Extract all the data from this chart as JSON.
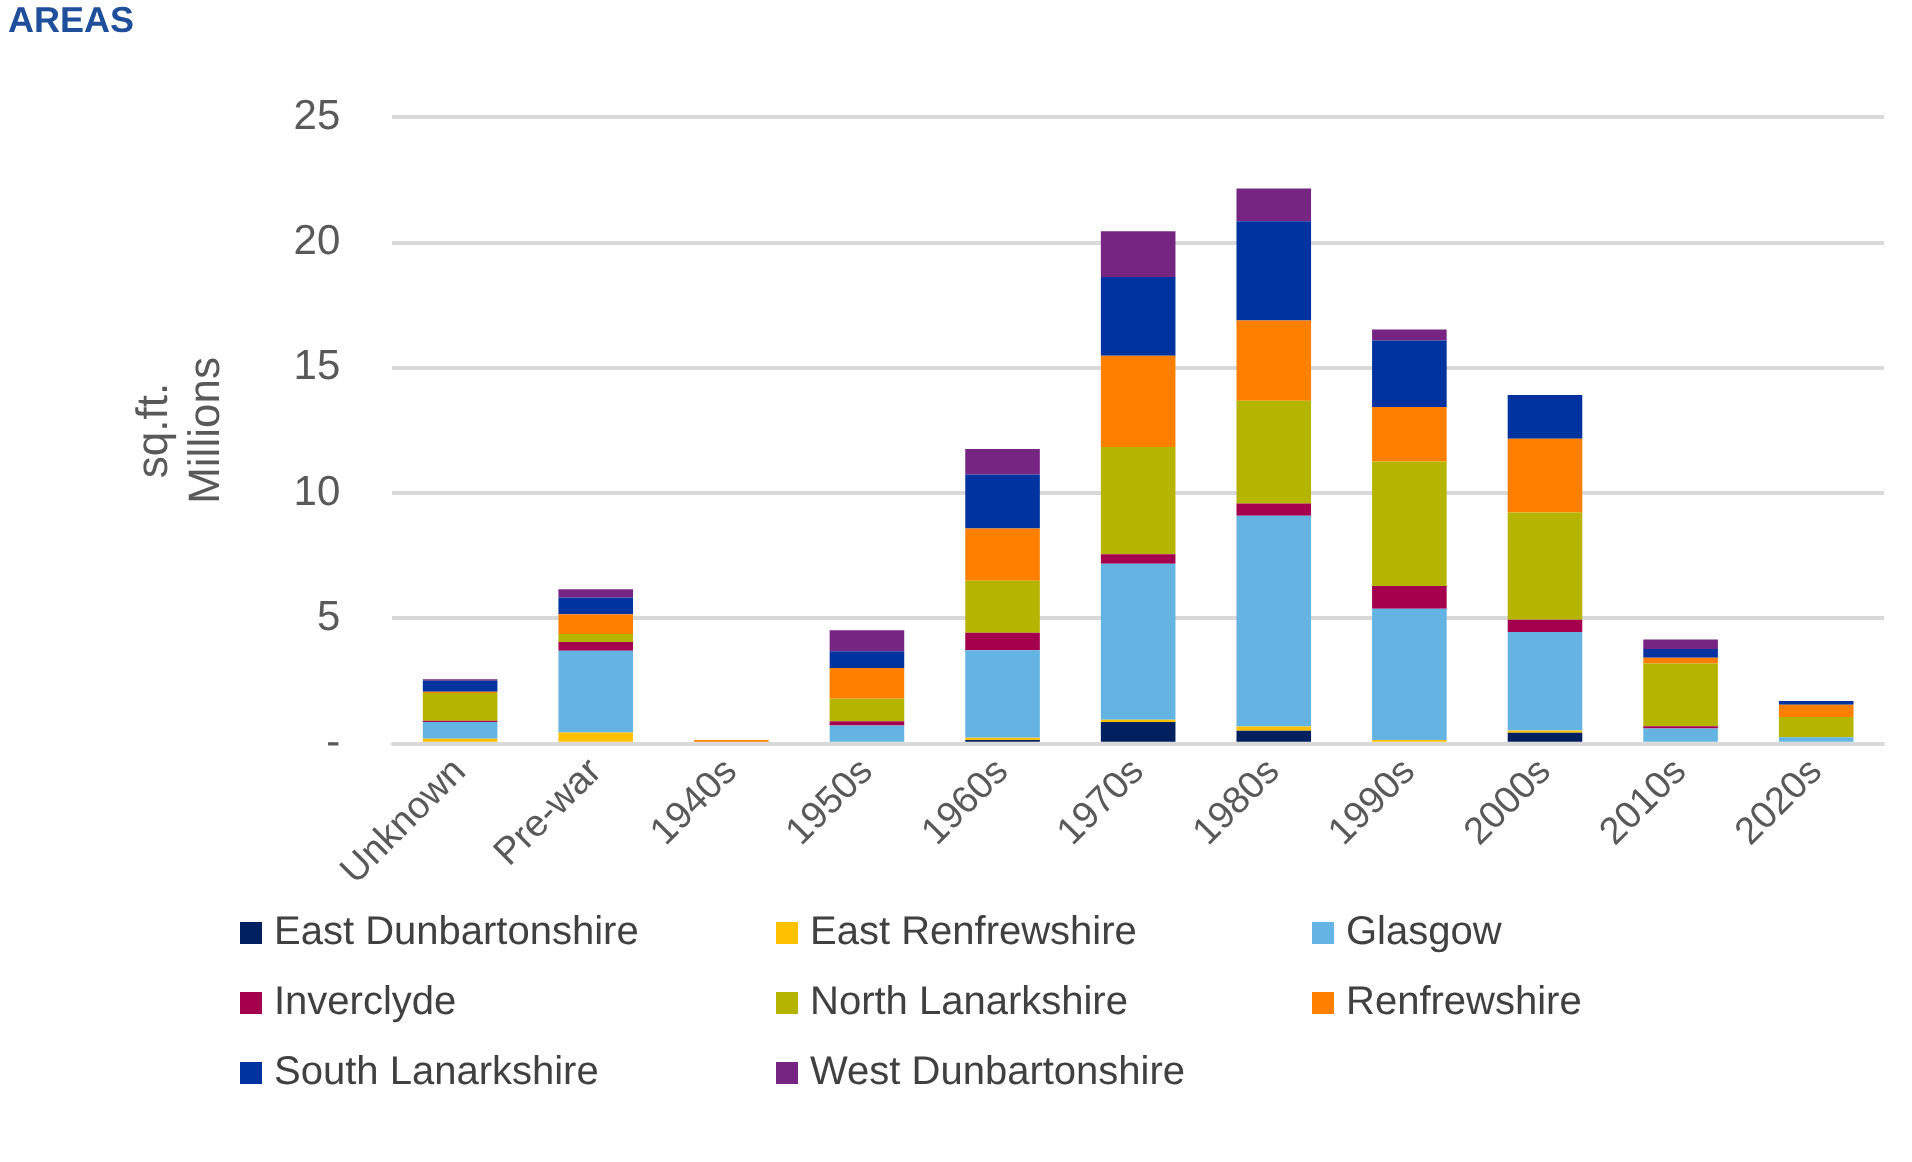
{
  "chart_data": {
    "type": "bar",
    "title": "AREAS",
    "ylabel": "sq.ft.\nMillions",
    "stacked": true,
    "grid": "y",
    "legend": "bottom",
    "categories": [
      "Unknown",
      "Pre-war",
      "1940s",
      "1950s",
      "1960s",
      "1970s",
      "1980s",
      "1990s",
      "2000s",
      "2010s",
      "2020s"
    ],
    "ylim": [
      0,
      25
    ],
    "yticks": [
      {
        "value": 0,
        "label": "-"
      },
      5,
      10,
      15,
      20,
      25
    ],
    "series": [
      {
        "name": "East Dunbartonshire",
        "color": "#002060",
        "values": [
          0,
          null,
          0,
          0,
          0.15,
          0.87,
          0.52,
          0,
          0.44,
          null,
          0
        ]
      },
      {
        "name": "East Renfrewshire",
        "color": "#ffc000",
        "values": [
          0.2,
          0.45,
          0,
          0,
          0.09,
          0.09,
          0.17,
          0.15,
          0.09,
          0,
          null
        ]
      },
      {
        "name": "Glasgow",
        "color": "#63b4e3",
        "values": [
          0.67,
          3.26,
          0,
          0.73,
          3.49,
          6.22,
          8.41,
          5.24,
          3.93,
          0.61,
          0.26
        ]
      },
      {
        "name": "Inverclyde",
        "color": "#a5004d",
        "values": [
          0.05,
          0.35,
          0,
          0.17,
          0.7,
          0.38,
          0.49,
          0.9,
          0.49,
          0.09,
          0
        ]
      },
      {
        "name": "North Lanarkshire",
        "color": "#b5b400",
        "values": [
          1.1,
          0.32,
          0,
          0.9,
          2.07,
          4.28,
          4.1,
          4.97,
          4.28,
          2.5,
          0.81
        ]
      },
      {
        "name": "Renfrewshire",
        "color": "#ff8000",
        "values": [
          0.05,
          0.79,
          0.15,
          1.22,
          2.09,
          3.64,
          3.2,
          2.18,
          2.94,
          0.23,
          0.49
        ]
      },
      {
        "name": "South Lanarkshire",
        "color": "#0033a0",
        "values": [
          0.44,
          0.67,
          0,
          0.67,
          2.15,
          3.14,
          3.96,
          2.65,
          1.75,
          0.35,
          0.15
        ]
      },
      {
        "name": "West Dunbartonshire",
        "color": "#772583",
        "values": [
          0.06,
          0.32,
          0,
          0.84,
          1.02,
          1.83,
          1.31,
          0.44,
          0,
          0.38,
          0
        ]
      }
    ]
  }
}
